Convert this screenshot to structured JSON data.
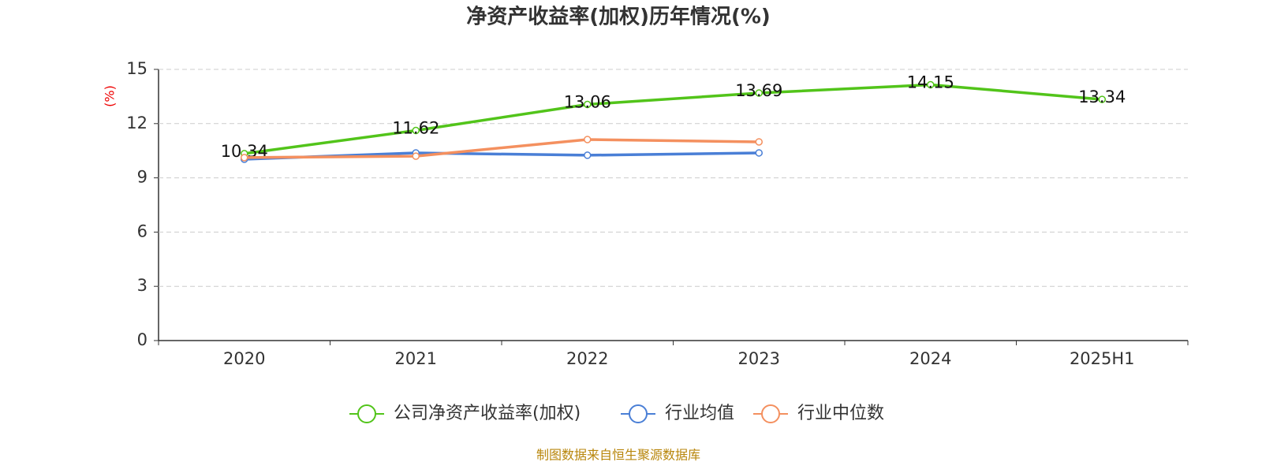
{
  "chart_data": {
    "type": "line",
    "title": "净资产收益率(加权)历年情况(%)",
    "y_label": "(%)",
    "source": "制图数据来自恒生聚源数据库",
    "categories": [
      "2020",
      "2021",
      "2022",
      "2023",
      "2024",
      "2025H1"
    ],
    "series": [
      {
        "name": "公司净资产收益率(加权)",
        "color": "#52c41a",
        "values": [
          10.34,
          11.62,
          13.06,
          13.69,
          14.15,
          13.34
        ],
        "data_labels": true
      },
      {
        "name": "行业均值",
        "color": "#4a7fd6",
        "values": [
          10.03,
          10.38,
          10.25,
          10.38,
          null,
          null
        ],
        "data_labels": false
      },
      {
        "name": "行业中位数",
        "color": "#f4905f",
        "values": [
          10.12,
          10.2,
          11.12,
          10.99,
          null,
          null
        ],
        "data_labels": false
      }
    ],
    "ylim": [
      0,
      15
    ],
    "yticks": [
      0,
      3,
      6,
      9,
      12,
      15
    ],
    "grid": true
  }
}
